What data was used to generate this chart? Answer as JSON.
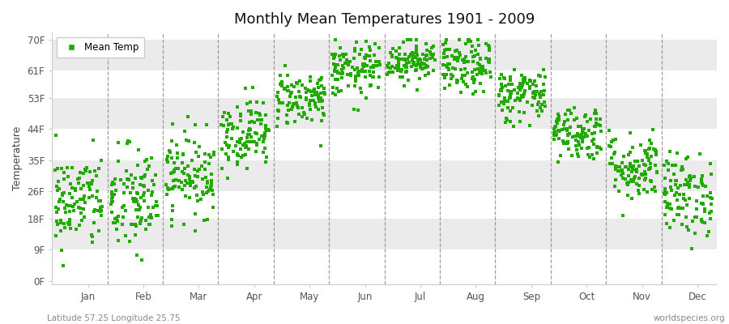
{
  "title": "Monthly Mean Temperatures 1901 - 2009",
  "ylabel": "Temperature",
  "subtitle_left": "Latitude 57.25 Longitude 25.75",
  "subtitle_right": "worldspecies.org",
  "ytick_labels": [
    "0F",
    "9F",
    "18F",
    "26F",
    "35F",
    "44F",
    "53F",
    "61F",
    "70F"
  ],
  "ytick_values": [
    0,
    9,
    18,
    26,
    35,
    44,
    53,
    61,
    70
  ],
  "months": [
    "Jan",
    "Feb",
    "Mar",
    "Apr",
    "May",
    "Jun",
    "Jul",
    "Aug",
    "Sep",
    "Oct",
    "Nov",
    "Dec"
  ],
  "dot_color": "#22aa00",
  "bg_color_light": "#ebebeb",
  "bg_color_white": "#ffffff",
  "legend_label": "Mean Temp",
  "num_years": 109,
  "seed": 42,
  "monthly_mean_temps_F": [
    23,
    23,
    31,
    43,
    53,
    61,
    64,
    62,
    54,
    43,
    33,
    25
  ],
  "monthly_std_temps_F": [
    7,
    8,
    6,
    5,
    4,
    4,
    3,
    4,
    4,
    4,
    5,
    6
  ]
}
